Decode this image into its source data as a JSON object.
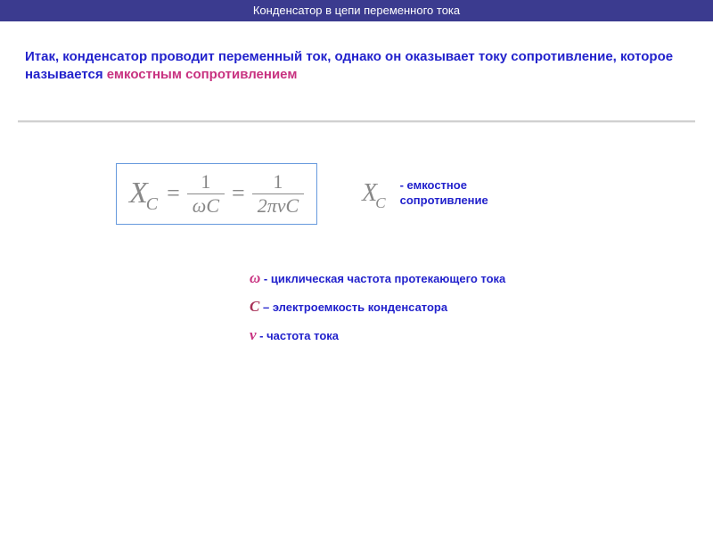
{
  "header": {
    "title": "Конденсатор в цепи переменного тока"
  },
  "paragraph": {
    "lead": "Итак, конденсатор проводит переменный ток, однако он оказывает току сопротивление, которое называется ",
    "highlight": "емкостным сопротивлением"
  },
  "formula": {
    "X": "X",
    "C": "C",
    "eq": "=",
    "num1": "1",
    "den1": "ωC",
    "num2": "1",
    "den2": "2πνC"
  },
  "xc_label": {
    "line1": "- емкостное",
    "line2": "сопротивление"
  },
  "legend": {
    "omega": {
      "sym": "ω",
      "dash": " - ",
      "text": "циклическая частота протекающего тока"
    },
    "C": {
      "sym": "С",
      "dash": " – ",
      "text": "электроемкость конденсатора"
    },
    "nu": {
      "sym": "ν",
      "dash": " - ",
      "text": "частота тока"
    }
  },
  "colors": {
    "header_bg": "#3b3b8f",
    "text_blue": "#2222cc",
    "highlight_magenta": "#c83280",
    "formula_gray": "#888888",
    "box_border": "#6699dd"
  }
}
